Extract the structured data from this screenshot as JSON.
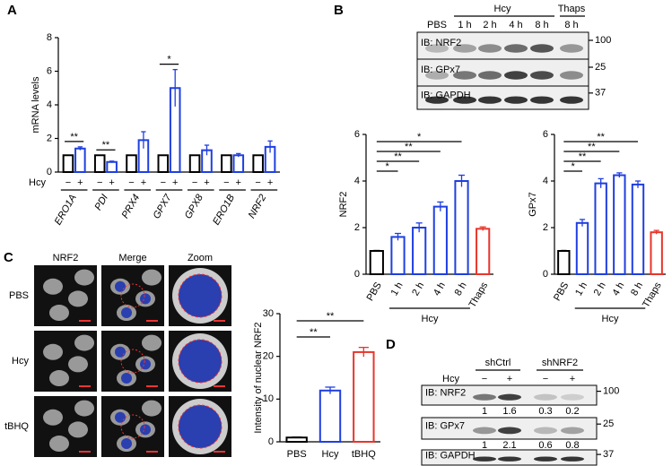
{
  "panels": [
    "A",
    "B",
    "C",
    "D"
  ],
  "chart_data": [
    {
      "type": "bar",
      "ylabel": "mRNA levels",
      "ylim": [
        0,
        8
      ],
      "yticks": [
        0,
        2,
        4,
        6,
        8
      ],
      "categories": [
        "ERO1A",
        "PDI",
        "PRX4",
        "GPX7",
        "GPX8",
        "ERO1B",
        "NRF2"
      ],
      "x_row_label": "Hcy",
      "x_sub_labels": [
        "−",
        "+"
      ],
      "series": [
        {
          "color": "#000000",
          "values": [
            1,
            1,
            1,
            1,
            1,
            1,
            1
          ]
        },
        {
          "color": "#1f3fe0",
          "values": [
            1.4,
            0.6,
            1.9,
            5.0,
            1.3,
            1.0,
            1.5
          ],
          "errors": [
            0.1,
            0.05,
            0.5,
            1.1,
            0.3,
            0.1,
            0.35
          ]
        }
      ],
      "significance": [
        "**",
        "**",
        null,
        "*",
        null,
        null,
        null
      ]
    },
    {
      "type": "bar",
      "ylabel": "NRF2",
      "ylim": [
        0,
        6
      ],
      "yticks": [
        0,
        2,
        4,
        6
      ],
      "categories": [
        "PBS",
        "1 h",
        "2 h",
        "4 h",
        "8 h",
        "Thaps"
      ],
      "group_label": "Hcy",
      "values": [
        1,
        1.6,
        2.0,
        2.9,
        4.0,
        1.95
      ],
      "errors": [
        0.02,
        0.15,
        0.2,
        0.2,
        0.25,
        0.08
      ],
      "colors": [
        "#000000",
        "#1f3fe0",
        "#1f3fe0",
        "#1f3fe0",
        "#1f3fe0",
        "#e8352b"
      ],
      "significance": [
        "*",
        "**",
        "**",
        "*"
      ]
    },
    {
      "type": "bar",
      "ylabel": "GPx7",
      "ylim": [
        0,
        6
      ],
      "yticks": [
        0,
        2,
        4,
        6
      ],
      "categories": [
        "PBS",
        "1 h",
        "2 h",
        "4 h",
        "8 h",
        "Thaps"
      ],
      "group_label": "Hcy",
      "values": [
        1,
        2.2,
        3.9,
        4.25,
        3.85,
        1.8
      ],
      "errors": [
        0.02,
        0.15,
        0.2,
        0.1,
        0.15,
        0.08
      ],
      "colors": [
        "#000000",
        "#1f3fe0",
        "#1f3fe0",
        "#1f3fe0",
        "#1f3fe0",
        "#e8352b"
      ],
      "significance": [
        "*",
        "**",
        "**",
        "**"
      ]
    },
    {
      "type": "bar",
      "ylabel": "Intensity of nuclear NRF2",
      "ylim": [
        0,
        30
      ],
      "yticks": [
        0,
        10,
        20,
        30
      ],
      "categories": [
        "PBS",
        "Hcy",
        "tBHQ"
      ],
      "values": [
        1,
        12,
        21
      ],
      "errors": [
        0.1,
        0.8,
        1.1
      ],
      "colors": [
        "#000000",
        "#1f3fe0",
        "#e8352b"
      ],
      "significance": [
        "**",
        "**"
      ]
    }
  ],
  "blot_b": {
    "groups": [
      "Hcy",
      "Thaps"
    ],
    "lanes": [
      "PBS",
      "1 h",
      "2 h",
      "4 h",
      "8 h",
      "8 h"
    ],
    "rows": [
      "IB: NRF2",
      "IB: GPx7",
      "IB: GAPDH"
    ],
    "markers": [
      100,
      25,
      37
    ]
  },
  "images_c": {
    "columns": [
      "NRF2",
      "Merge",
      "Zoom"
    ],
    "rows": [
      "PBS",
      "Hcy",
      "tBHQ"
    ]
  },
  "blot_d": {
    "groups": [
      "shCtrl",
      "shNRF2"
    ],
    "row_label": "Hcy",
    "lanes": [
      "−",
      "+",
      "−",
      "+"
    ],
    "rows": [
      "IB: NRF2",
      "IB: GPx7",
      "IB: GAPDH"
    ],
    "markers": [
      100,
      25,
      37
    ],
    "quant": [
      [
        1,
        1.6,
        0.3,
        0.2
      ],
      [
        1,
        2.1,
        0.6,
        0.8
      ]
    ]
  }
}
